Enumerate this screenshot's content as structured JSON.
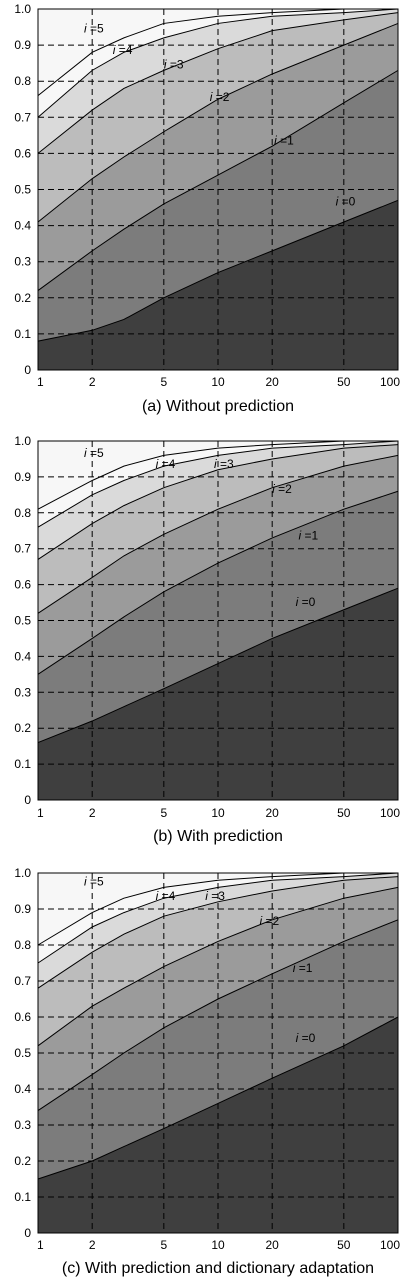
{
  "chart_data": [
    {
      "type": "area",
      "caption": "(a) Without prediction",
      "x_scale": "log",
      "xlim": [
        1,
        100
      ],
      "ylim": [
        0,
        1
      ],
      "x_ticks": [
        "1",
        "2",
        "5",
        "10",
        "20",
        "50",
        "100"
      ],
      "y_ticks": [
        "0",
        "0.1",
        "0.2",
        "0.3",
        "0.4",
        "0.5",
        "0.6",
        "0.7",
        "0.8",
        "0.9",
        "1.0"
      ],
      "grid": true,
      "x": [
        1,
        2,
        3,
        5,
        10,
        20,
        50,
        100
      ],
      "series": [
        {
          "name": "i =0",
          "values": [
            0.08,
            0.11,
            0.14,
            0.2,
            0.27,
            0.33,
            0.41,
            0.47
          ]
        },
        {
          "name": "i =1",
          "values": [
            0.22,
            0.33,
            0.39,
            0.46,
            0.54,
            0.62,
            0.74,
            0.83
          ]
        },
        {
          "name": "i =2",
          "values": [
            0.41,
            0.53,
            0.59,
            0.66,
            0.75,
            0.82,
            0.9,
            0.96
          ]
        },
        {
          "name": "i =3",
          "values": [
            0.6,
            0.72,
            0.78,
            0.83,
            0.89,
            0.94,
            0.97,
            0.99
          ]
        },
        {
          "name": "i =4",
          "values": [
            0.7,
            0.83,
            0.88,
            0.92,
            0.96,
            0.98,
            0.99,
            1.0
          ]
        },
        {
          "name": "i =5",
          "values": [
            0.76,
            0.88,
            0.92,
            0.96,
            0.98,
            0.99,
            1.0,
            1.0
          ]
        }
      ],
      "labels": [
        {
          "prefix": "i",
          "text": "=5"
        },
        {
          "prefix": "i",
          "text": "=4"
        },
        {
          "prefix": "i",
          "text": "=3"
        },
        {
          "prefix": "i",
          "text": "=2"
        },
        {
          "prefix": "i",
          "text": "=1"
        },
        {
          "prefix": "i",
          "text": "=0"
        }
      ],
      "fill_colors": [
        "#3f3f3f",
        "#5f5f5f",
        "#7c7c7c",
        "#9b9b9b",
        "#bcbcbc",
        "#dadada",
        "#f7f7f7"
      ]
    },
    {
      "type": "area",
      "caption": "(b) With prediction",
      "x_scale": "log",
      "xlim": [
        1,
        100
      ],
      "ylim": [
        0,
        1
      ],
      "x_ticks": [
        "1",
        "2",
        "5",
        "10",
        "20",
        "50",
        "100"
      ],
      "y_ticks": [
        "0",
        "0.1",
        "0.2",
        "0.3",
        "0.4",
        "0.5",
        "0.6",
        "0.7",
        "0.8",
        "0.9",
        "1.0"
      ],
      "grid": true,
      "x": [
        1,
        2,
        3,
        5,
        10,
        20,
        50,
        100
      ],
      "series": [
        {
          "name": "i =0",
          "values": [
            0.16,
            0.22,
            0.26,
            0.31,
            0.38,
            0.45,
            0.53,
            0.59
          ]
        },
        {
          "name": "i =1",
          "values": [
            0.35,
            0.45,
            0.51,
            0.58,
            0.66,
            0.73,
            0.81,
            0.86
          ]
        },
        {
          "name": "i =2",
          "values": [
            0.52,
            0.62,
            0.68,
            0.74,
            0.81,
            0.87,
            0.93,
            0.96
          ]
        },
        {
          "name": "i =3",
          "values": [
            0.67,
            0.77,
            0.82,
            0.87,
            0.92,
            0.95,
            0.98,
            0.99
          ]
        },
        {
          "name": "i =4",
          "values": [
            0.76,
            0.85,
            0.89,
            0.93,
            0.96,
            0.98,
            0.99,
            1.0
          ]
        },
        {
          "name": "i =5",
          "values": [
            0.81,
            0.89,
            0.93,
            0.96,
            0.98,
            0.99,
            1.0,
            1.0
          ]
        }
      ],
      "labels": [
        {
          "prefix": "i",
          "text": "=5"
        },
        {
          "prefix": "i",
          "text": "=4"
        },
        {
          "prefix": "i",
          "text": "=3"
        },
        {
          "prefix": "i",
          "text": "=2"
        },
        {
          "prefix": "i",
          "text": "=1"
        },
        {
          "prefix": "i",
          "text": "=0"
        }
      ],
      "fill_colors": [
        "#3f3f3f",
        "#5f5f5f",
        "#7c7c7c",
        "#9b9b9b",
        "#bcbcbc",
        "#dadada",
        "#f7f7f7"
      ]
    },
    {
      "type": "area",
      "caption": "(c) With prediction and dictionary adaptation",
      "x_scale": "log",
      "xlim": [
        1,
        100
      ],
      "ylim": [
        0,
        1
      ],
      "x_ticks": [
        "1",
        "2",
        "5",
        "10",
        "20",
        "50",
        "100"
      ],
      "y_ticks": [
        "0",
        "0.1",
        "0.2",
        "0.3",
        "0.4",
        "0.5",
        "0.6",
        "0.7",
        "0.8",
        "0.9",
        "1.0"
      ],
      "grid": true,
      "x": [
        1,
        2,
        3,
        5,
        10,
        20,
        50,
        100
      ],
      "series": [
        {
          "name": "i =0",
          "values": [
            0.15,
            0.2,
            0.24,
            0.29,
            0.36,
            0.43,
            0.52,
            0.6
          ]
        },
        {
          "name": "i =1",
          "values": [
            0.34,
            0.44,
            0.5,
            0.57,
            0.65,
            0.72,
            0.81,
            0.87
          ]
        },
        {
          "name": "i =2",
          "values": [
            0.52,
            0.63,
            0.68,
            0.74,
            0.81,
            0.87,
            0.93,
            0.96
          ]
        },
        {
          "name": "i =3",
          "values": [
            0.68,
            0.78,
            0.83,
            0.88,
            0.92,
            0.95,
            0.98,
            0.99
          ]
        },
        {
          "name": "i =4",
          "values": [
            0.75,
            0.85,
            0.89,
            0.93,
            0.96,
            0.98,
            0.99,
            1.0
          ]
        },
        {
          "name": "i =5",
          "values": [
            0.8,
            0.89,
            0.93,
            0.96,
            0.98,
            0.99,
            1.0,
            1.0
          ]
        }
      ],
      "labels": [
        {
          "prefix": "i",
          "text": "=5"
        },
        {
          "prefix": "i",
          "text": "=4"
        },
        {
          "prefix": "i",
          "text": "=3"
        },
        {
          "prefix": "i",
          "text": "=2"
        },
        {
          "prefix": "i",
          "text": "=1"
        },
        {
          "prefix": "i",
          "text": "=0"
        }
      ],
      "fill_colors": [
        "#3f3f3f",
        "#5f5f5f",
        "#7c7c7c",
        "#9b9b9b",
        "#bcbcbc",
        "#dadada",
        "#f7f7f7"
      ]
    }
  ]
}
